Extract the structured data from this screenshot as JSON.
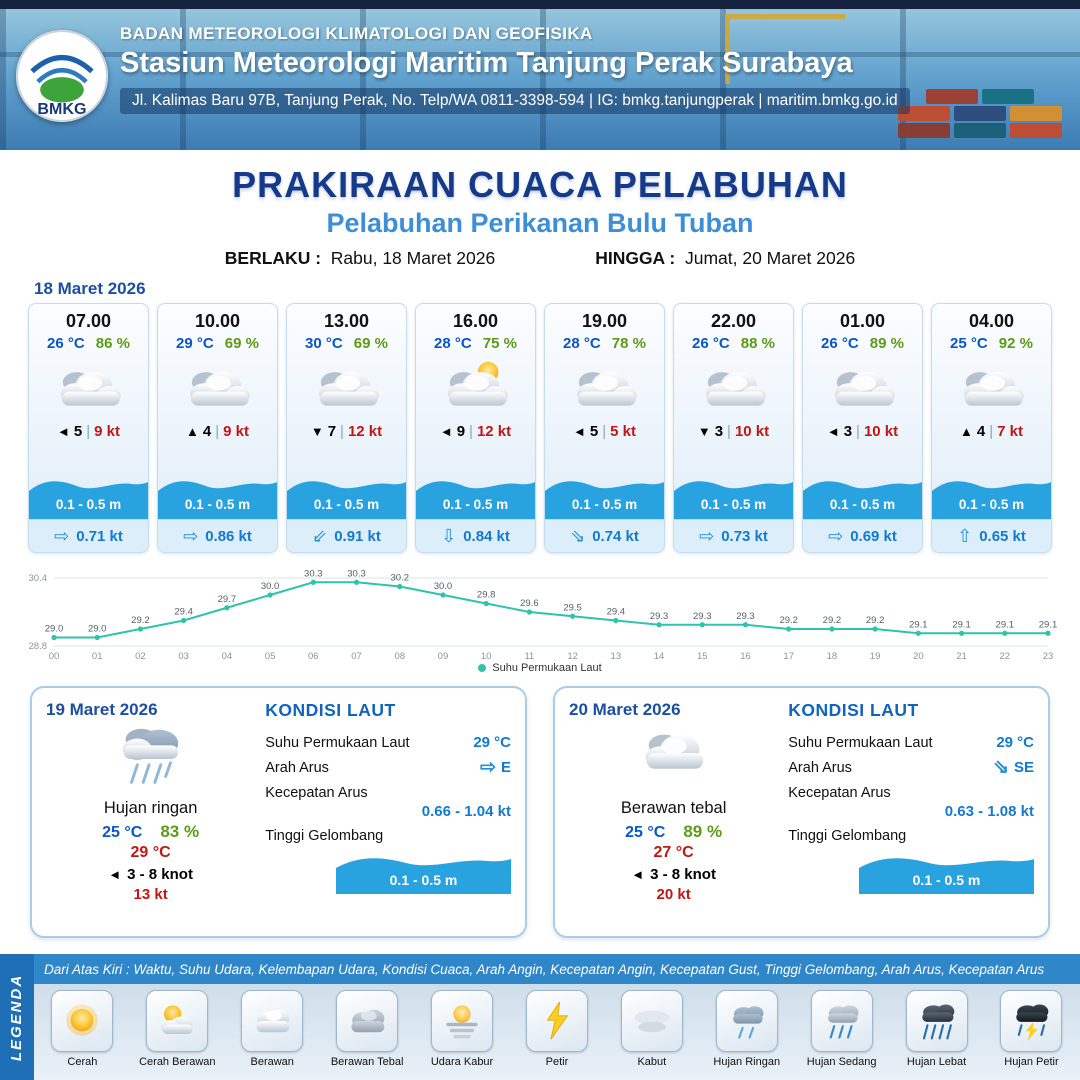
{
  "header": {
    "org_name": "BADAN METEOROLOGI KLIMATOLOGI DAN GEOFISIKA",
    "station_name": "Stasiun Meteorologi Maritim Tanjung Perak Surabaya",
    "contact_line": "Jl. Kalimas Baru 97B, Tanjung Perak, No. Telp/WA 0811-3398-594 | IG: bmkg.tanjungperak | maritim.bmkg.go.id",
    "logo_label": "BMKG"
  },
  "title": {
    "main": "PRAKIRAAN CUACA PELABUHAN",
    "subtitle": "Pelabuhan Perikanan Bulu Tuban",
    "valid_from_label": "BERLAKU :",
    "valid_from": "Rabu, 18 Maret 2026",
    "valid_until_label": "HINGGA :",
    "valid_until": "Jumat, 20 Maret 2026"
  },
  "forecast": {
    "date": "18 Maret 2026",
    "wind_separator": "|",
    "cards": [
      {
        "time": "07.00",
        "temp": "26 °C",
        "humidity": "86 %",
        "weather": "berawan",
        "wind_dir": "◄",
        "wind": "5",
        "gust": "9 kt",
        "wave": "0.1 - 0.5 m",
        "current_dir": "⇨",
        "current": "0.71 kt"
      },
      {
        "time": "10.00",
        "temp": "29 °C",
        "humidity": "69 %",
        "weather": "berawan",
        "wind_dir": "▲",
        "wind": "4",
        "gust": "9 kt",
        "wave": "0.1 - 0.5 m",
        "current_dir": "⇨",
        "current": "0.86 kt"
      },
      {
        "time": "13.00",
        "temp": "30 °C",
        "humidity": "69 %",
        "weather": "berawan",
        "wind_dir": "▼",
        "wind": "7",
        "gust": "12 kt",
        "wave": "0.1 - 0.5 m",
        "current_dir": "⇙",
        "current": "0.91 kt"
      },
      {
        "time": "16.00",
        "temp": "28 °C",
        "humidity": "75 %",
        "weather": "cerah berawan",
        "wind_dir": "◄",
        "wind": "9",
        "gust": "12 kt",
        "wave": "0.1 - 0.5 m",
        "current_dir": "⇩",
        "current": "0.84 kt"
      },
      {
        "time": "19.00",
        "temp": "28 °C",
        "humidity": "78 %",
        "weather": "berawan",
        "wind_dir": "◄",
        "wind": "5",
        "gust": "5 kt",
        "wave": "0.1 - 0.5 m",
        "current_dir": "⇘",
        "current": "0.74 kt"
      },
      {
        "time": "22.00",
        "temp": "26 °C",
        "humidity": "88 %",
        "weather": "berawan",
        "wind_dir": "▼",
        "wind": "3",
        "gust": "10 kt",
        "wave": "0.1 - 0.5 m",
        "current_dir": "⇨",
        "current": "0.73 kt"
      },
      {
        "time": "01.00",
        "temp": "26 °C",
        "humidity": "89 %",
        "weather": "berawan",
        "wind_dir": "◄",
        "wind": "3",
        "gust": "10 kt",
        "wave": "0.1 - 0.5 m",
        "current_dir": "⇨",
        "current": "0.69 kt"
      },
      {
        "time": "04.00",
        "temp": "25 °C",
        "humidity": "92 %",
        "weather": "berawan",
        "wind_dir": "▲",
        "wind": "4",
        "gust": "7 kt",
        "wave": "0.1 - 0.5 m",
        "current_dir": "⇧",
        "current": "0.65 kt"
      }
    ]
  },
  "chart_data": {
    "type": "line",
    "title": "Suhu Permukaan Laut",
    "legend": "Suhu Permukaan Laut",
    "x": [
      "00",
      "01",
      "02",
      "03",
      "04",
      "05",
      "06",
      "07",
      "08",
      "09",
      "10",
      "11",
      "12",
      "13",
      "14",
      "15",
      "16",
      "17",
      "18",
      "19",
      "20",
      "21",
      "22",
      "23"
    ],
    "values": [
      29.0,
      29.0,
      29.2,
      29.4,
      29.7,
      30.0,
      30.3,
      30.3,
      30.2,
      30.0,
      29.8,
      29.6,
      29.5,
      29.4,
      29.3,
      29.3,
      29.3,
      29.2,
      29.2,
      29.2,
      29.1,
      29.1,
      29.1,
      29.1
    ],
    "ylim": [
      28.8,
      30.4
    ],
    "line_color": "#2fc3ac",
    "grid": false,
    "legend_position": "bottom"
  },
  "days": [
    {
      "date": "19 Maret 2026",
      "condition": "Hujan ringan",
      "temp_min": "25 °C",
      "humidity": "83 %",
      "temp_max": "29 °C",
      "wind_dir": "◄",
      "wind": "3 - 8 knot",
      "gust": "13 kt",
      "sea": {
        "title": "KONDISI LAUT",
        "sst_label": "Suhu Permukaan Laut",
        "sst": "29 °C",
        "current_dir_label": "Arah Arus",
        "current_dir_icon": "⇨",
        "current_dir": "E",
        "current_speed_label": "Kecepatan Arus",
        "current_speed": "0.66  - 1.04 kt",
        "wave_label": "Tinggi Gelombang",
        "wave": "0.1 - 0.5 m"
      }
    },
    {
      "date": "20 Maret 2026",
      "condition": "Berawan tebal",
      "temp_min": "25 °C",
      "humidity": "89 %",
      "temp_max": "27 °C",
      "wind_dir": "◄",
      "wind": "3 - 8 knot",
      "gust": "20 kt",
      "sea": {
        "title": "KONDISI LAUT",
        "sst_label": "Suhu Permukaan Laut",
        "sst": "29 °C",
        "current_dir_label": "Arah Arus",
        "current_dir_icon": "⇘",
        "current_dir": "SE",
        "current_speed_label": "Kecepatan Arus",
        "current_speed": "0.63 - 1.08 kt",
        "wave_label": "Tinggi Gelombang",
        "wave": "0.1 - 0.5 m"
      }
    }
  ],
  "legend": {
    "strip_label": "LEGENDA",
    "description": "Dari Atas Kiri : Waktu, Suhu Udara, Kelembapan Udara, Kondisi Cuaca, Arah Angin, Kecepatan Angin, Kecepatan Gust, Tinggi Gelombang, Arah Arus, Kecepatan Arus",
    "items": [
      {
        "label": "Cerah",
        "icon": "sun"
      },
      {
        "label": "Cerah Berawan",
        "icon": "sun-cloud"
      },
      {
        "label": "Berawan",
        "icon": "cloud"
      },
      {
        "label": "Berawan Tebal",
        "icon": "thick-cloud"
      },
      {
        "label": "Udara Kabur",
        "icon": "haze"
      },
      {
        "label": "Petir",
        "icon": "lightning"
      },
      {
        "label": "Kabut",
        "icon": "fog"
      },
      {
        "label": "Hujan Ringan",
        "icon": "light-rain"
      },
      {
        "label": "Hujan Sedang",
        "icon": "moderate-rain"
      },
      {
        "label": "Hujan Lebat",
        "icon": "heavy-rain"
      },
      {
        "label": "Hujan Petir",
        "icon": "thunderstorm"
      }
    ]
  },
  "colors": {
    "accent_blue": "#1c4f9f",
    "temp_blue": "#0a56c8",
    "humidity_green": "#5b9b16",
    "gust_red": "#c11616",
    "wave_blue": "#29a3e0",
    "chart_line": "#2fc3ac",
    "legend_bar_blue": "#2f86c8"
  }
}
